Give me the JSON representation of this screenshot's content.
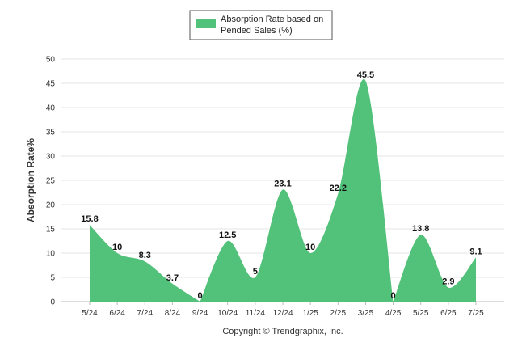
{
  "chart_data": {
    "type": "area",
    "categories": [
      "5/24",
      "6/24",
      "7/24",
      "8/24",
      "9/24",
      "10/24",
      "11/24",
      "12/24",
      "1/25",
      "2/25",
      "3/25",
      "4/25",
      "5/25",
      "6/25",
      "7/25"
    ],
    "series": [
      {
        "name": "Absorption Rate based on Pended Sales (%)",
        "name_lines": [
          "Absorption Rate based on",
          "Pended Sales (%)"
        ],
        "values": [
          15.8,
          10,
          8.3,
          3.7,
          0,
          12.5,
          5,
          23.1,
          10,
          22.2,
          45.5,
          0,
          13.8,
          2.9,
          9.1
        ],
        "labels": [
          "15.8",
          "10",
          "8.3",
          "3.7",
          "0",
          "12.5",
          "5",
          "23.1",
          "10",
          "22.2",
          "45.5",
          "0",
          "13.8",
          "2.9",
          "9.1"
        ],
        "color": "#52c17a"
      }
    ],
    "ylabel": "Absorption Rate%",
    "ylim": [
      0,
      50
    ],
    "yticks": [
      0,
      5,
      10,
      15,
      20,
      25,
      30,
      35,
      40,
      45,
      50
    ],
    "grid": true,
    "legend": "top-center"
  },
  "footer": {
    "copyright": "Copyright © Trendgraphix, Inc."
  }
}
